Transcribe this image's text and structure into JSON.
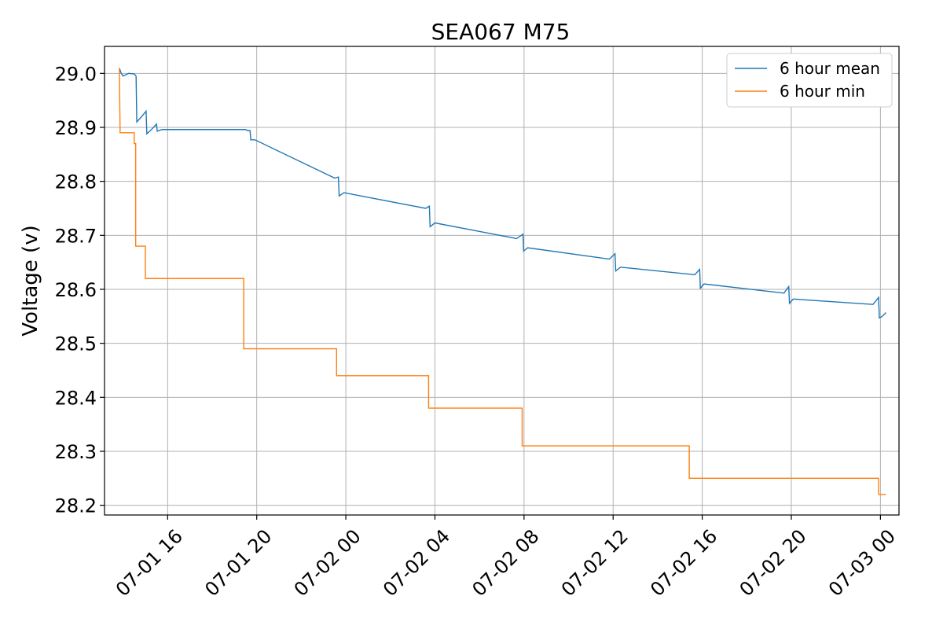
{
  "chart_data": {
    "type": "line",
    "title": "SEA067 M75",
    "xlabel": "",
    "ylabel": "Voltage (v)",
    "x_range": [
      "2024-07-01 13:10",
      "2024-07-03 00:50"
    ],
    "ylim": [
      28.182,
      29.05
    ],
    "grid": true,
    "legend_position": "top-right",
    "x_ticks": [
      {
        "t": "2024-07-01 16:00",
        "label": "07-01 16"
      },
      {
        "t": "2024-07-01 20:00",
        "label": "07-01 20"
      },
      {
        "t": "2024-07-02 00:00",
        "label": "07-02 00"
      },
      {
        "t": "2024-07-02 04:00",
        "label": "07-02 04"
      },
      {
        "t": "2024-07-02 08:00",
        "label": "07-02 08"
      },
      {
        "t": "2024-07-02 12:00",
        "label": "07-02 12"
      },
      {
        "t": "2024-07-02 16:00",
        "label": "07-02 16"
      },
      {
        "t": "2024-07-02 20:00",
        "label": "07-02 20"
      },
      {
        "t": "2024-07-03 00:00",
        "label": "07-03 00"
      }
    ],
    "y_ticks": [
      {
        "v": 28.2,
        "label": "28.2"
      },
      {
        "v": 28.3,
        "label": "28.3"
      },
      {
        "v": 28.4,
        "label": "28.4"
      },
      {
        "v": 28.5,
        "label": "28.5"
      },
      {
        "v": 28.6,
        "label": "28.6"
      },
      {
        "v": 28.7,
        "label": "28.7"
      },
      {
        "v": 28.8,
        "label": "28.8"
      },
      {
        "v": 28.9,
        "label": "28.9"
      },
      {
        "v": 29.0,
        "label": "29.0"
      }
    ],
    "series": [
      {
        "name": "6 hour mean",
        "color": "#1f77b4",
        "points": [
          [
            "2024-07-01 13:50",
            29.01
          ],
          [
            "2024-07-01 13:55",
            29.0
          ],
          [
            "2024-07-01 14:00",
            28.995
          ],
          [
            "2024-07-01 14:15",
            29.0
          ],
          [
            "2024-07-01 14:30",
            28.999
          ],
          [
            "2024-07-01 14:35",
            28.995
          ],
          [
            "2024-07-01 14:37",
            28.91
          ],
          [
            "2024-07-01 14:50",
            28.92
          ],
          [
            "2024-07-01 15:02",
            28.93
          ],
          [
            "2024-07-01 15:04",
            28.888
          ],
          [
            "2024-07-01 15:15",
            28.895
          ],
          [
            "2024-07-01 15:30",
            28.906
          ],
          [
            "2024-07-01 15:32",
            28.893
          ],
          [
            "2024-07-01 15:45",
            28.896
          ],
          [
            "2024-07-01 19:30",
            28.896
          ],
          [
            "2024-07-01 19:35",
            28.894
          ],
          [
            "2024-07-01 19:42",
            28.894
          ],
          [
            "2024-07-01 19:44",
            28.877
          ],
          [
            "2024-07-01 19:55",
            28.877
          ],
          [
            "2024-07-01 23:30",
            28.806
          ],
          [
            "2024-07-01 23:40",
            28.808
          ],
          [
            "2024-07-01 23:42",
            28.773
          ],
          [
            "2024-07-01 23:55",
            28.779
          ],
          [
            "2024-07-02 03:35",
            28.75
          ],
          [
            "2024-07-02 03:45",
            28.754
          ],
          [
            "2024-07-02 03:47",
            28.716
          ],
          [
            "2024-07-02 04:00",
            28.723
          ],
          [
            "2024-07-02 07:40",
            28.694
          ],
          [
            "2024-07-02 07:57",
            28.702
          ],
          [
            "2024-07-02 07:59",
            28.671
          ],
          [
            "2024-07-02 08:10",
            28.677
          ],
          [
            "2024-07-02 11:50",
            28.656
          ],
          [
            "2024-07-02 12:05",
            28.666
          ],
          [
            "2024-07-02 12:07",
            28.634
          ],
          [
            "2024-07-02 12:20",
            28.641
          ],
          [
            "2024-07-02 15:40",
            28.627
          ],
          [
            "2024-07-02 15:53",
            28.637
          ],
          [
            "2024-07-02 15:55",
            28.602
          ],
          [
            "2024-07-02 16:05",
            28.61
          ],
          [
            "2024-07-02 19:40",
            28.593
          ],
          [
            "2024-07-02 19:53",
            28.605
          ],
          [
            "2024-07-02 19:55",
            28.574
          ],
          [
            "2024-07-02 20:05",
            28.582
          ],
          [
            "2024-07-02 23:40",
            28.572
          ],
          [
            "2024-07-02 23:55",
            28.585
          ],
          [
            "2024-07-02 23:57",
            28.547
          ],
          [
            "2024-07-03 00:05",
            28.55
          ],
          [
            "2024-07-03 00:15",
            28.557
          ]
        ]
      },
      {
        "name": "6 hour min",
        "color": "#ff7f0e",
        "points": [
          [
            "2024-07-01 13:50",
            29.01
          ],
          [
            "2024-07-01 13:52",
            28.89
          ],
          [
            "2024-07-01 14:30",
            28.89
          ],
          [
            "2024-07-01 14:30",
            28.87
          ],
          [
            "2024-07-01 14:34",
            28.87
          ],
          [
            "2024-07-01 14:34",
            28.68
          ],
          [
            "2024-07-01 15:00",
            28.68
          ],
          [
            "2024-07-01 15:00",
            28.62
          ],
          [
            "2024-07-01 19:25",
            28.62
          ],
          [
            "2024-07-01 19:25",
            28.49
          ],
          [
            "2024-07-01 23:35",
            28.49
          ],
          [
            "2024-07-01 23:35",
            28.44
          ],
          [
            "2024-07-02 03:43",
            28.44
          ],
          [
            "2024-07-02 03:43",
            28.38
          ],
          [
            "2024-07-02 07:55",
            28.38
          ],
          [
            "2024-07-02 07:55",
            28.31
          ],
          [
            "2024-07-02 15:25",
            28.31
          ],
          [
            "2024-07-02 15:25",
            28.25
          ],
          [
            "2024-07-02 23:55",
            28.25
          ],
          [
            "2024-07-02 23:55",
            28.22
          ],
          [
            "2024-07-03 00:15",
            28.22
          ]
        ]
      }
    ]
  }
}
